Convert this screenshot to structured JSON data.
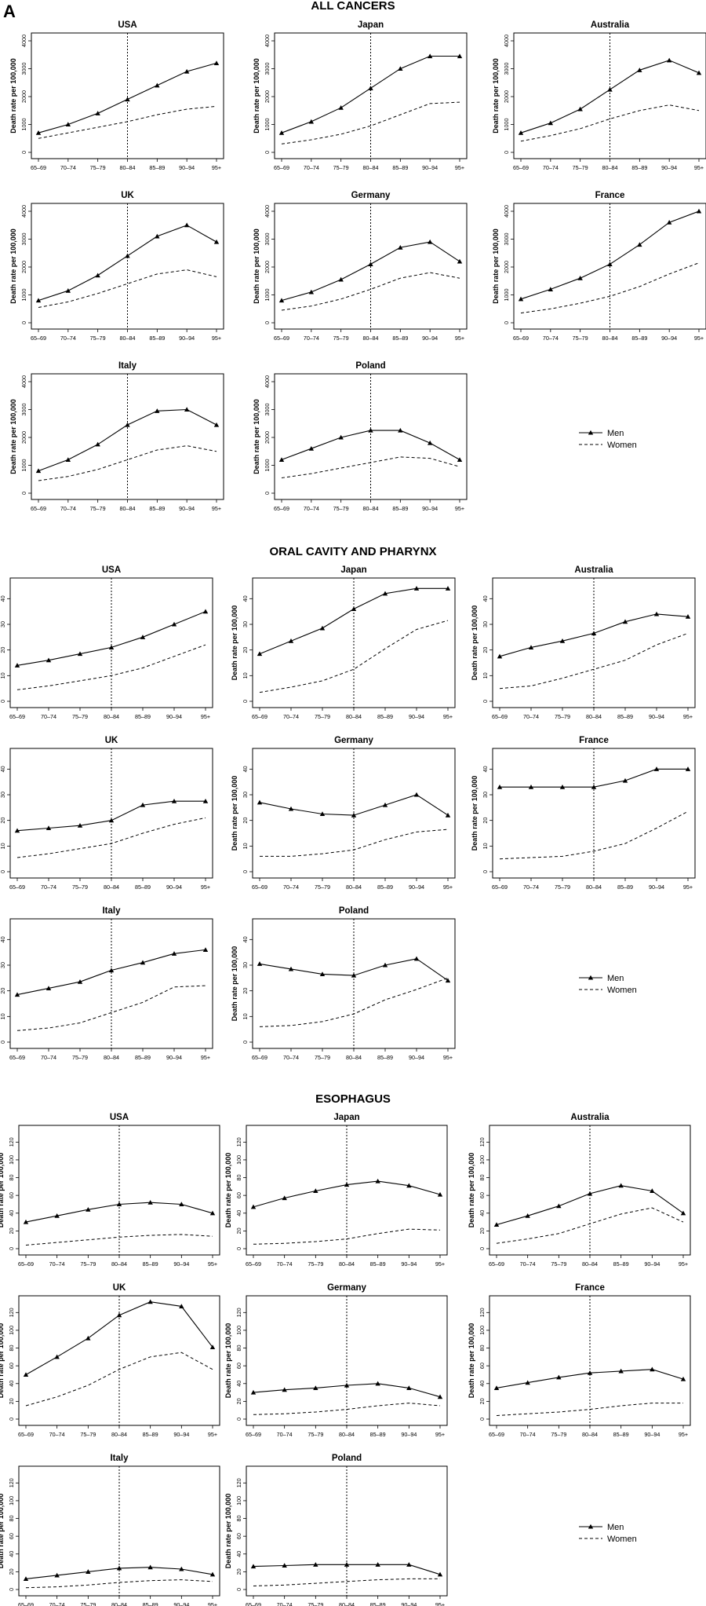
{
  "figure_label": "A",
  "legend": {
    "men": "Men",
    "women": "Women"
  },
  "chart_data": [
    {
      "section": "ALL CANCERS",
      "type": "line",
      "xlabel": "",
      "ylabel": "Death rate per 100,000",
      "ylim": [
        0,
        4000
      ],
      "yticks": [
        0,
        1000,
        2000,
        3000,
        4000
      ],
      "categories": [
        "65–69",
        "70–74",
        "75–79",
        "80–84",
        "85–89",
        "90–94",
        "95+"
      ],
      "reference_line_at": "80–84",
      "panels": [
        {
          "title": "USA",
          "series": [
            {
              "name": "Men",
              "values": [
                700,
                1000,
                1400,
                1900,
                2400,
                2900,
                3200
              ]
            },
            {
              "name": "Women",
              "values": [
                500,
                700,
                900,
                1100,
                1350,
                1550,
                1650
              ]
            }
          ]
        },
        {
          "title": "Japan",
          "series": [
            {
              "name": "Men",
              "values": [
                700,
                1100,
                1600,
                2300,
                3000,
                3450,
                3450
              ]
            },
            {
              "name": "Women",
              "values": [
                300,
                450,
                650,
                950,
                1350,
                1750,
                1800
              ]
            }
          ]
        },
        {
          "title": "Australia",
          "series": [
            {
              "name": "Men",
              "values": [
                700,
                1050,
                1550,
                2250,
                2950,
                3300,
                2850
              ]
            },
            {
              "name": "Women",
              "values": [
                400,
                600,
                850,
                1200,
                1500,
                1700,
                1500
              ]
            }
          ]
        },
        {
          "title": "UK",
          "series": [
            {
              "name": "Men",
              "values": [
                800,
                1150,
                1700,
                2400,
                3100,
                3500,
                2900
              ]
            },
            {
              "name": "Women",
              "values": [
                550,
                750,
                1050,
                1400,
                1750,
                1900,
                1650
              ]
            }
          ]
        },
        {
          "title": "Germany",
          "series": [
            {
              "name": "Men",
              "values": [
                800,
                1100,
                1550,
                2100,
                2700,
                2900,
                2200
              ]
            },
            {
              "name": "Women",
              "values": [
                450,
                600,
                850,
                1200,
                1600,
                1800,
                1600
              ]
            }
          ]
        },
        {
          "title": "France",
          "series": [
            {
              "name": "Men",
              "values": [
                850,
                1200,
                1600,
                2100,
                2800,
                3600,
                4000
              ]
            },
            {
              "name": "Women",
              "values": [
                350,
                500,
                700,
                950,
                1300,
                1750,
                2150
              ]
            }
          ]
        },
        {
          "title": "Italy",
          "series": [
            {
              "name": "Men",
              "values": [
                800,
                1200,
                1750,
                2450,
                2950,
                3000,
                2450
              ]
            },
            {
              "name": "Women",
              "values": [
                450,
                600,
                850,
                1200,
                1550,
                1700,
                1500
              ]
            }
          ]
        },
        {
          "title": "Poland",
          "series": [
            {
              "name": "Men",
              "values": [
                1200,
                1600,
                2000,
                2250,
                2250,
                1800,
                1200
              ]
            },
            {
              "name": "Women",
              "values": [
                550,
                700,
                900,
                1100,
                1300,
                1250,
                950
              ]
            }
          ]
        }
      ]
    },
    {
      "section": "ORAL CAVITY AND PHARYNX",
      "type": "line",
      "xlabel": "",
      "ylabel": "Death rate per 100,000",
      "ylim": [
        0,
        45
      ],
      "yticks": [
        0,
        10,
        20,
        30,
        40
      ],
      "categories": [
        "65–69",
        "70–74",
        "75–79",
        "80–84",
        "85–89",
        "90–94",
        "95+"
      ],
      "reference_line_at": "80–84",
      "panels": [
        {
          "title": "USA",
          "series": [
            {
              "name": "Men",
              "values": [
                14,
                16,
                18.5,
                21,
                25,
                30,
                35
              ]
            },
            {
              "name": "Women",
              "values": [
                4.5,
                6,
                8,
                10,
                13,
                17.5,
                22
              ]
            }
          ]
        },
        {
          "title": "Japan",
          "series": [
            {
              "name": "Men",
              "values": [
                18.5,
                23.5,
                28.5,
                36,
                42,
                44,
                44
              ]
            },
            {
              "name": "Women",
              "values": [
                3.5,
                5.5,
                8,
                12.5,
                20.5,
                28,
                31.5
              ]
            }
          ]
        },
        {
          "title": "Australia",
          "series": [
            {
              "name": "Men",
              "values": [
                17.5,
                21,
                23.5,
                26.5,
                31,
                34,
                33
              ]
            },
            {
              "name": "Women",
              "values": [
                5,
                6,
                9,
                12.5,
                16,
                22,
                26.5
              ]
            }
          ]
        },
        {
          "title": "UK",
          "series": [
            {
              "name": "Men",
              "values": [
                16,
                17,
                18,
                20,
                26,
                27.5,
                27.5
              ]
            },
            {
              "name": "Women",
              "values": [
                5.5,
                7,
                9,
                11,
                15,
                18.5,
                21
              ]
            }
          ]
        },
        {
          "title": "Germany",
          "series": [
            {
              "name": "Men",
              "values": [
                27,
                24.5,
                22.5,
                22,
                26,
                30,
                22
              ]
            },
            {
              "name": "Women",
              "values": [
                6,
                6,
                7,
                8.5,
                12.5,
                15.5,
                16.5
              ]
            }
          ]
        },
        {
          "title": "France",
          "series": [
            {
              "name": "Men",
              "values": [
                33,
                33,
                33,
                33,
                35.5,
                40,
                40
              ]
            },
            {
              "name": "Women",
              "values": [
                5,
                5.5,
                6,
                8,
                11,
                17,
                23.5
              ]
            }
          ]
        },
        {
          "title": "Italy",
          "series": [
            {
              "name": "Men",
              "values": [
                18.5,
                21,
                23.5,
                28,
                31,
                34.5,
                36
              ]
            },
            {
              "name": "Women",
              "values": [
                4.5,
                5.5,
                7.5,
                11.5,
                15.5,
                21.5,
                22
              ]
            }
          ]
        },
        {
          "title": "Poland",
          "series": [
            {
              "name": "Men",
              "values": [
                30.5,
                28.5,
                26.5,
                26,
                30,
                32.5,
                24
              ]
            },
            {
              "name": "Women",
              "values": [
                6,
                6.5,
                8,
                11,
                16.5,
                20.5,
                25
              ]
            }
          ]
        }
      ]
    },
    {
      "section": "ESOPHAGUS",
      "type": "line",
      "xlabel": "",
      "ylabel": "Death rate per 100,000",
      "ylim": [
        0,
        130
      ],
      "yticks": [
        0,
        20,
        40,
        60,
        80,
        100,
        120
      ],
      "categories": [
        "65–69",
        "70–74",
        "75–79",
        "80–84",
        "85–89",
        "90–94",
        "95+"
      ],
      "reference_line_at": "80–84",
      "panels": [
        {
          "title": "USA",
          "series": [
            {
              "name": "Men",
              "values": [
                30,
                37,
                44,
                50,
                52,
                50,
                40
              ]
            },
            {
              "name": "Women",
              "values": [
                4,
                7,
                10,
                13,
                15,
                16,
                14
              ]
            }
          ]
        },
        {
          "title": "Japan",
          "series": [
            {
              "name": "Men",
              "values": [
                47,
                57,
                65,
                72,
                76,
                71,
                61
              ]
            },
            {
              "name": "Women",
              "values": [
                5,
                6,
                8,
                11,
                17,
                22,
                21
              ]
            }
          ]
        },
        {
          "title": "Australia",
          "series": [
            {
              "name": "Men",
              "values": [
                27,
                37,
                48,
                62,
                71,
                65,
                40
              ]
            },
            {
              "name": "Women",
              "values": [
                6,
                11,
                17,
                28,
                39,
                46,
                30
              ]
            }
          ]
        },
        {
          "title": "UK",
          "series": [
            {
              "name": "Men",
              "values": [
                50,
                70,
                91,
                117,
                132,
                127,
                81
              ]
            },
            {
              "name": "Women",
              "values": [
                15,
                25,
                38,
                56,
                70,
                75,
                56
              ]
            }
          ]
        },
        {
          "title": "Germany",
          "series": [
            {
              "name": "Men",
              "values": [
                30,
                33,
                35,
                38,
                40,
                35,
                25
              ]
            },
            {
              "name": "Women",
              "values": [
                5,
                6,
                8,
                11,
                15,
                18,
                15
              ]
            }
          ]
        },
        {
          "title": "France",
          "series": [
            {
              "name": "Men",
              "values": [
                35,
                41,
                47,
                52,
                54,
                56,
                45
              ]
            },
            {
              "name": "Women",
              "values": [
                4,
                6,
                8,
                11,
                15,
                18,
                18
              ]
            }
          ]
        },
        {
          "title": "Italy",
          "series": [
            {
              "name": "Men",
              "values": [
                12,
                16,
                20,
                24,
                25,
                23,
                17
              ]
            },
            {
              "name": "Women",
              "values": [
                2,
                3,
                5,
                8,
                10,
                11,
                9
              ]
            }
          ]
        },
        {
          "title": "Poland",
          "series": [
            {
              "name": "Men",
              "values": [
                26,
                27,
                28,
                28,
                28,
                28,
                17
              ]
            },
            {
              "name": "Women",
              "values": [
                4,
                5,
                7,
                9,
                11,
                12,
                12
              ]
            }
          ]
        }
      ]
    }
  ]
}
